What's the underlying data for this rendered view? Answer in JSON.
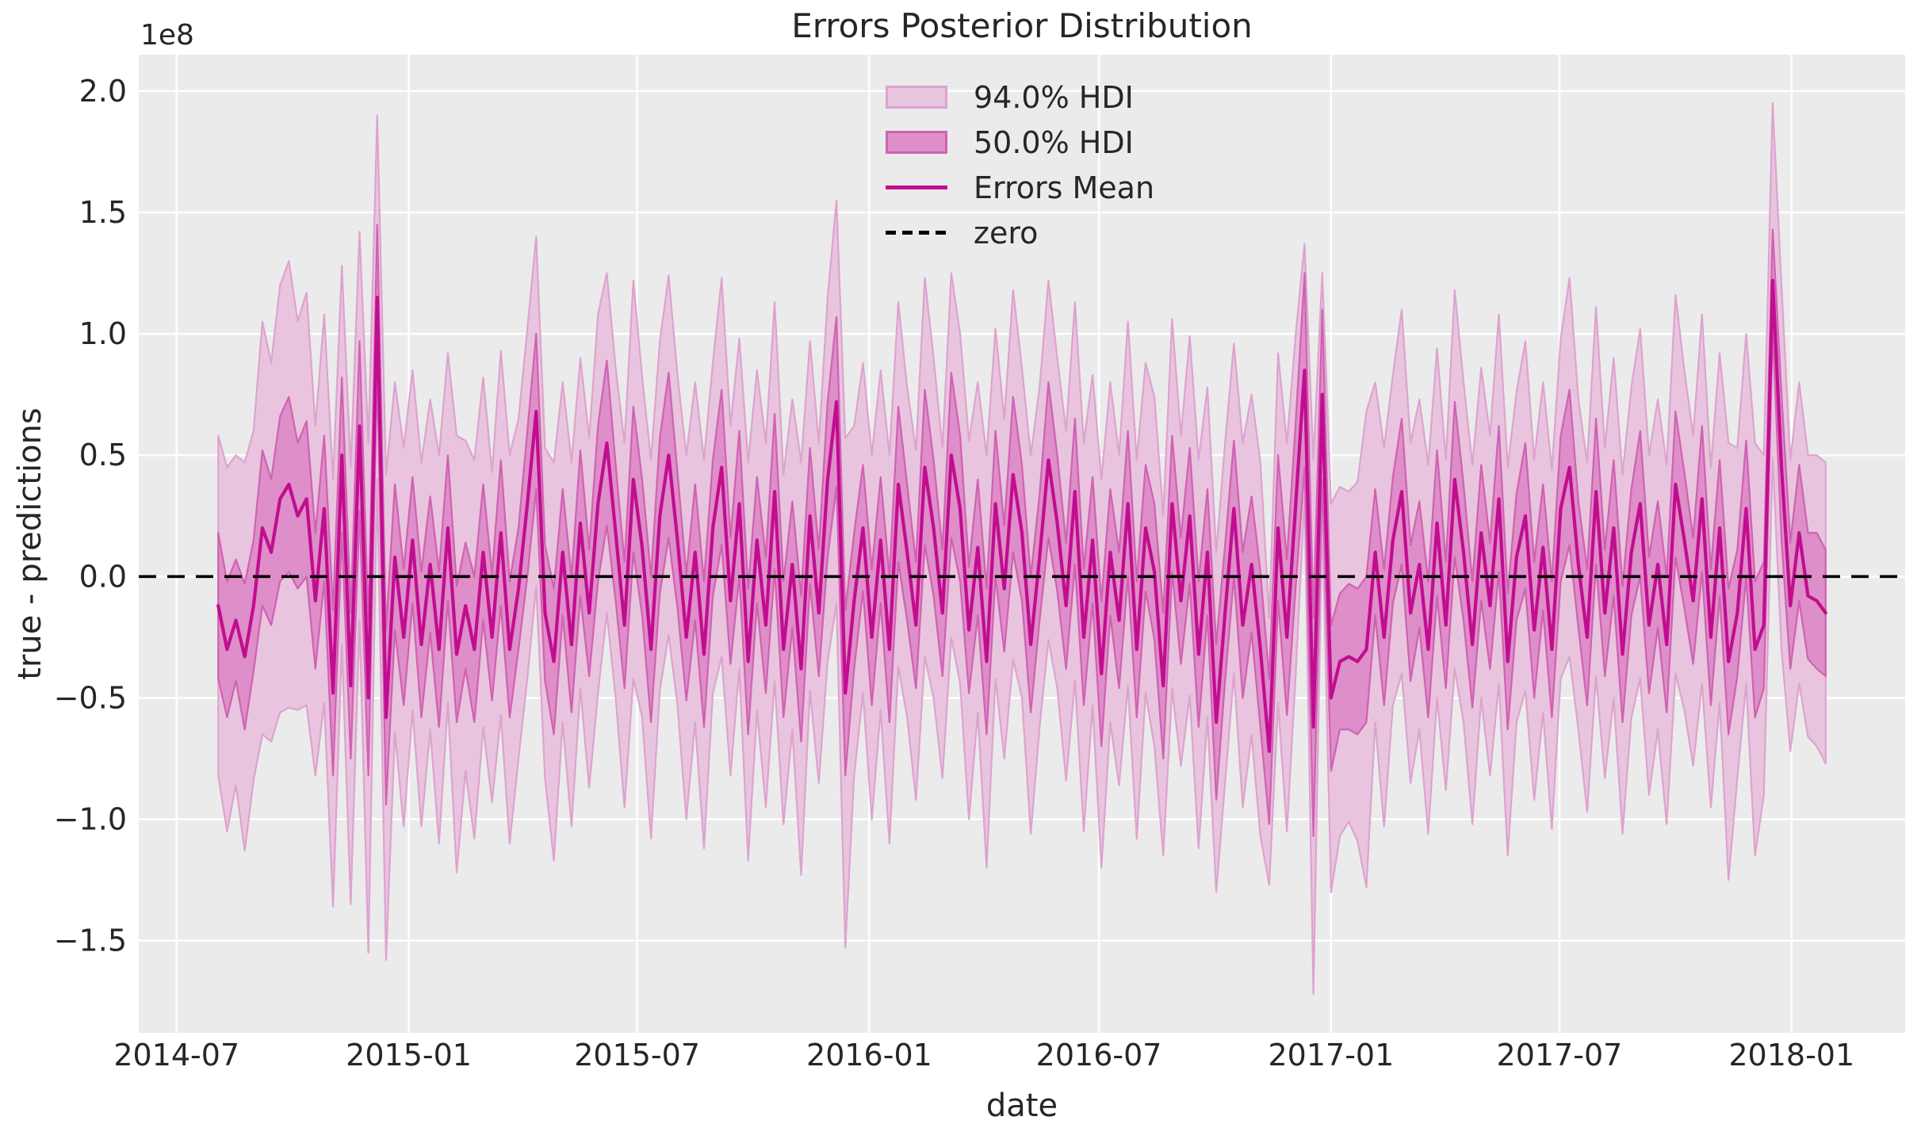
{
  "figure": {
    "title": "Errors Posterior Distribution",
    "xlabel": "date",
    "ylabel": "true - predictions",
    "y_offset_text": "1e8"
  },
  "colors": {
    "figure_bg": "#ffffff",
    "plot_bg": "#ebebeb",
    "grid": "#ffffff",
    "hdi94_fill": "#e9c4de",
    "hdi94_edge": "#dda3cf",
    "hdi50_fill": "#de8ec8",
    "hdi50_edge": "#cf62b2",
    "mean_line": "#c10d90",
    "zero_line": "#000000",
    "text": "#262626"
  },
  "legend": {
    "frame": false,
    "position": "upper center",
    "items": [
      {
        "label": "94.0% HDI",
        "type": "patch",
        "fill": "#e9c4de",
        "edge": "#dda3cf"
      },
      {
        "label": "50.0% HDI",
        "type": "patch",
        "fill": "#de8ec8",
        "edge": "#cf62b2"
      },
      {
        "label": "Errors Mean",
        "type": "line",
        "color": "#c10d90"
      },
      {
        "label": "zero",
        "type": "dashed_line",
        "color": "#000000"
      }
    ]
  },
  "chart_data": {
    "type": "line",
    "title": "Errors Posterior Distribution",
    "xlabel": "date",
    "ylabel": "true - predictions",
    "grid": true,
    "y_scale_factor": 100000000,
    "y_unit_note": "series values are in units of 1e8 (axis offset label)",
    "xlim_dates": [
      "2014-06-01",
      "2018-04-01"
    ],
    "ylim": [
      -1.88,
      2.15
    ],
    "xticks": {
      "dates": [
        "2014-07-01",
        "2015-01-01",
        "2015-07-01",
        "2016-01-01",
        "2016-07-01",
        "2017-01-01",
        "2017-07-01",
        "2018-01-01"
      ],
      "labels": [
        "2014-07",
        "2015-01",
        "2015-07",
        "2016-01",
        "2016-07",
        "2017-01",
        "2017-07",
        "2018-01"
      ]
    },
    "yticks": {
      "values": [
        2.0,
        1.5,
        1.0,
        0.5,
        0.0,
        -0.5,
        -1.0,
        -1.5
      ],
      "labels": [
        "2.0",
        "1.5",
        "1.0",
        "0.5",
        "0.0",
        "−0.5",
        "−1.0",
        "−1.5"
      ]
    },
    "x": {
      "start_date": "2014-08-03",
      "interval_days": 7,
      "n_points": 183
    },
    "series": [
      {
        "name": "Errors Mean",
        "kind": "line",
        "values": [
          -0.12,
          -0.3,
          -0.18,
          -0.33,
          -0.12,
          0.2,
          0.1,
          0.32,
          0.38,
          0.25,
          0.32,
          -0.1,
          0.28,
          -0.48,
          0.5,
          -0.45,
          0.62,
          -0.5,
          1.15,
          -0.58,
          0.08,
          -0.25,
          0.15,
          -0.28,
          0.05,
          -0.3,
          0.2,
          -0.32,
          -0.12,
          -0.3,
          0.1,
          -0.25,
          0.18,
          -0.3,
          -0.05,
          0.3,
          0.68,
          -0.15,
          -0.35,
          0.1,
          -0.28,
          0.22,
          -0.15,
          0.3,
          0.55,
          0.18,
          -0.2,
          0.4,
          0.12,
          -0.3,
          0.25,
          0.5,
          0.15,
          -0.25,
          0.1,
          -0.32,
          0.2,
          0.45,
          -0.1,
          0.3,
          -0.35,
          0.15,
          -0.2,
          0.35,
          -0.3,
          0.05,
          -0.38,
          0.25,
          -0.15,
          0.4,
          0.72,
          -0.48,
          -0.1,
          0.2,
          -0.25,
          0.15,
          -0.3,
          0.38,
          0.1,
          -0.2,
          0.45,
          0.2,
          -0.15,
          0.5,
          0.28,
          -0.22,
          0.12,
          -0.35,
          0.3,
          -0.05,
          0.42,
          0.18,
          -0.28,
          0.08,
          0.48,
          0.22,
          -0.12,
          0.35,
          -0.25,
          0.15,
          -0.4,
          0.1,
          -0.18,
          0.3,
          -0.3,
          0.2,
          0.02,
          -0.45,
          0.3,
          -0.1,
          0.25,
          -0.32,
          0.1,
          -0.6,
          -0.15,
          0.28,
          -0.2,
          0.05,
          -0.3,
          -0.72,
          0.2,
          -0.25,
          0.3,
          0.85,
          -0.62,
          0.75,
          -0.5,
          -0.35,
          -0.33,
          -0.35,
          -0.3,
          0.1,
          -0.25,
          0.15,
          0.35,
          -0.15,
          0.05,
          -0.3,
          0.22,
          -0.2,
          0.4,
          0.1,
          -0.28,
          0.18,
          -0.12,
          0.32,
          -0.35,
          0.08,
          0.25,
          -0.22,
          0.12,
          -0.3,
          0.28,
          0.45,
          0.05,
          -0.25,
          0.35,
          -0.15,
          0.2,
          -0.32,
          0.1,
          0.3,
          -0.2,
          0.05,
          -0.28,
          0.38,
          0.15,
          -0.1,
          0.32,
          -0.25,
          0.2,
          -0.35,
          -0.15,
          0.28,
          -0.3,
          -0.2,
          1.22,
          0.45,
          -0.12,
          0.18,
          -0.08,
          -0.1,
          -0.15
        ]
      },
      {
        "name": "50.0% HDI",
        "kind": "band",
        "halfwidth_around_mean": [
          0.3,
          0.28,
          0.25,
          0.3,
          0.27,
          0.32,
          0.3,
          0.34,
          0.36,
          0.3,
          0.32,
          0.28,
          0.3,
          0.34,
          0.32,
          0.3,
          0.35,
          0.32,
          0.3,
          0.36,
          0.3,
          0.28,
          0.26,
          0.3,
          0.28,
          0.32,
          0.3,
          0.28,
          0.26,
          0.3,
          0.28,
          0.26,
          0.3,
          0.28,
          0.25,
          0.3,
          0.32,
          0.28,
          0.3,
          0.26,
          0.28,
          0.3,
          0.26,
          0.32,
          0.34,
          0.28,
          0.26,
          0.3,
          0.28,
          0.3,
          0.32,
          0.34,
          0.28,
          0.26,
          0.28,
          0.3,
          0.28,
          0.32,
          0.26,
          0.3,
          0.3,
          0.26,
          0.28,
          0.32,
          0.28,
          0.26,
          0.3,
          0.28,
          0.26,
          0.32,
          0.35,
          0.34,
          0.28,
          0.26,
          0.28,
          0.26,
          0.3,
          0.32,
          0.28,
          0.26,
          0.32,
          0.28,
          0.26,
          0.34,
          0.3,
          0.26,
          0.28,
          0.3,
          0.3,
          0.26,
          0.32,
          0.28,
          0.28,
          0.26,
          0.32,
          0.28,
          0.26,
          0.3,
          0.28,
          0.26,
          0.3,
          0.26,
          0.28,
          0.3,
          0.28,
          0.26,
          0.28,
          0.3,
          0.28,
          0.26,
          0.28,
          0.3,
          0.26,
          0.32,
          0.28,
          0.28,
          0.3,
          0.28,
          0.32,
          0.3,
          0.3,
          0.32,
          0.34,
          0.4,
          0.45,
          0.35,
          0.3,
          0.28,
          0.3,
          0.3,
          0.3,
          0.26,
          0.28,
          0.26,
          0.3,
          0.28,
          0.26,
          0.28,
          0.3,
          0.26,
          0.32,
          0.28,
          0.26,
          0.28,
          0.26,
          0.3,
          0.28,
          0.26,
          0.3,
          0.28,
          0.26,
          0.28,
          0.3,
          0.32,
          0.26,
          0.28,
          0.3,
          0.26,
          0.28,
          0.28,
          0.26,
          0.3,
          0.28,
          0.26,
          0.28,
          0.3,
          0.28,
          0.26,
          0.3,
          0.28,
          0.28,
          0.3,
          0.26,
          0.28,
          0.28,
          0.26,
          0.21,
          0.3,
          0.26,
          0.28,
          0.26,
          0.28,
          0.26
        ]
      },
      {
        "name": "94.0% HDI",
        "kind": "band",
        "halfwidth_around_mean": [
          0.7,
          0.75,
          0.68,
          0.8,
          0.72,
          0.85,
          0.78,
          0.88,
          0.92,
          0.8,
          0.85,
          0.72,
          0.8,
          0.88,
          0.78,
          0.9,
          0.8,
          1.05,
          0.75,
          1.0,
          0.72,
          0.78,
          0.7,
          0.75,
          0.68,
          0.8,
          0.72,
          0.9,
          0.68,
          0.78,
          0.72,
          0.68,
          0.75,
          0.8,
          0.7,
          0.72,
          0.72,
          0.68,
          0.82,
          0.7,
          0.75,
          0.68,
          0.72,
          0.78,
          0.7,
          0.68,
          0.75,
          0.82,
          0.7,
          0.78,
          0.72,
          0.74,
          0.68,
          0.75,
          0.7,
          0.8,
          0.68,
          0.78,
          0.72,
          0.68,
          0.82,
          0.7,
          0.75,
          0.78,
          0.72,
          0.68,
          0.85,
          0.72,
          0.7,
          0.75,
          0.83,
          1.05,
          0.72,
          0.68,
          0.75,
          0.7,
          0.8,
          0.75,
          0.68,
          0.72,
          0.78,
          0.7,
          0.68,
          0.75,
          0.72,
          0.78,
          0.68,
          0.85,
          0.72,
          0.7,
          0.76,
          0.68,
          0.78,
          0.7,
          0.74,
          0.68,
          0.72,
          0.78,
          0.8,
          0.68,
          0.8,
          0.7,
          0.68,
          0.75,
          0.78,
          0.68,
          0.72,
          0.7,
          0.76,
          0.68,
          0.74,
          0.8,
          0.68,
          0.7,
          0.7,
          0.68,
          0.75,
          0.7,
          0.77,
          0.55,
          0.72,
          0.8,
          0.7,
          0.52,
          1.1,
          0.5,
          0.8,
          0.72,
          0.68,
          0.74,
          0.98,
          0.7,
          0.78,
          0.68,
          0.75,
          0.7,
          0.68,
          0.76,
          0.72,
          0.68,
          0.78,
          0.7,
          0.74,
          0.68,
          0.7,
          0.76,
          0.8,
          0.68,
          0.72,
          0.7,
          0.68,
          0.74,
          0.7,
          0.78,
          0.68,
          0.72,
          0.76,
          0.68,
          0.7,
          0.74,
          0.68,
          0.72,
          0.7,
          0.68,
          0.74,
          0.78,
          0.7,
          0.68,
          0.76,
          0.7,
          0.72,
          0.9,
          0.68,
          0.72,
          0.85,
          0.7,
          0.73,
          0.75,
          0.6,
          0.62,
          0.58,
          0.6,
          0.62
        ]
      },
      {
        "name": "zero",
        "kind": "hline",
        "value": 0
      }
    ]
  }
}
